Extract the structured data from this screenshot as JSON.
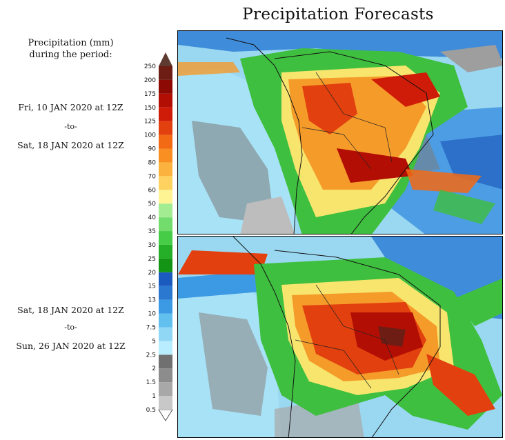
{
  "title": "Precipitation Forecasts",
  "legend_header": {
    "line1": "Precipitation (mm)",
    "line2": "during the period:"
  },
  "periods": [
    {
      "start": "Fri, 10 JAN 2020 at 12Z",
      "sep": "-to-",
      "end": "Sat, 18 JAN 2020 at 12Z"
    },
    {
      "start": "Sat, 18 JAN 2020 at 12Z",
      "sep": "-to-",
      "end": "Sun, 26 JAN 2020 at 12Z"
    }
  ],
  "colorbar": {
    "ticks": [
      "0.5",
      "1",
      "1.5",
      "2",
      "2.5",
      "5",
      "7.5",
      "10",
      "13",
      "15",
      "20",
      "25",
      "30",
      "35",
      "40",
      "50",
      "60",
      "70",
      "80",
      "90",
      "100",
      "125",
      "150",
      "175",
      "200",
      "250"
    ],
    "colors": [
      "#c8c8c8",
      "#a8a8a8",
      "#8c8c8c",
      "#707070",
      "#b8ecff",
      "#8fd7f5",
      "#62c0ef",
      "#3c9ae4",
      "#2a78d0",
      "#1b5bbf",
      "#139414",
      "#25ae28",
      "#47cc47",
      "#72dd6c",
      "#a4ec92",
      "#fff494",
      "#fdd25e",
      "#fcb23e",
      "#f98f22",
      "#f36a14",
      "#e2400e",
      "#cf1c08",
      "#b30e04",
      "#8c0a03",
      "#6e1d14"
    ],
    "arrow_top_color": "#5e3a30",
    "arrow_bottom_color": "#ffffff"
  },
  "maps": [
    {
      "name": "precip-map-jan10-18"
    },
    {
      "name": "precip-map-jan18-26"
    }
  ]
}
